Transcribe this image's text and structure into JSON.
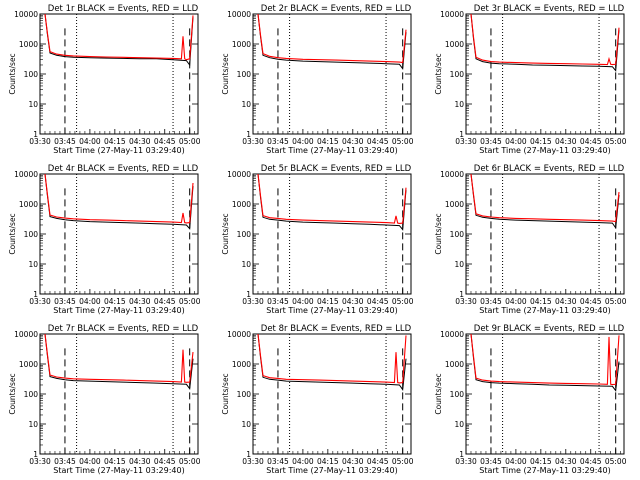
{
  "chart_data": [
    {
      "type": "line",
      "title": "Det 1r BLACK = Events, RED = LLD",
      "xlabel": "Start Time (27-May-11 03:29:40)",
      "ylabel": "Counts/sec",
      "xticks": [
        "03:30",
        "03:45",
        "04:00",
        "04:15",
        "04:30",
        "04:45",
        "05:00"
      ],
      "yticks": [
        "1",
        "10",
        "100",
        "1000",
        "10000"
      ],
      "ylim": [
        1,
        10000
      ],
      "yscale": "log",
      "series": [
        {
          "color": "#000000",
          "x": [
            3.0,
            4.5,
            6,
            10,
            15,
            20,
            30,
            40,
            50,
            60,
            70,
            80,
            88,
            90,
            92
          ],
          "y": [
            10000,
            2000,
            500,
            420,
            380,
            360,
            350,
            340,
            330,
            320,
            320,
            300,
            280,
            200,
            8000
          ]
        },
        {
          "color": "#ff0000",
          "x": [
            3.0,
            4.5,
            6,
            10,
            15,
            20,
            30,
            40,
            50,
            60,
            70,
            80,
            85,
            86,
            87,
            88,
            90,
            92
          ],
          "y": [
            10000,
            2200,
            560,
            460,
            420,
            400,
            380,
            370,
            360,
            350,
            340,
            330,
            320,
            1800,
            320,
            300,
            320,
            9000
          ]
        }
      ]
    },
    {
      "type": "line",
      "title": "Det 2r BLACK = Events, RED = LLD",
      "xlabel": "Start Time (27-May-11 03:29:40)",
      "ylabel": "Counts/sec",
      "xticks": [
        "03:30",
        "03:45",
        "04:00",
        "04:15",
        "04:30",
        "04:45",
        "05:00"
      ],
      "yticks": [
        "1",
        "10",
        "100",
        "1000",
        "10000"
      ],
      "ylim": [
        1,
        10000
      ],
      "yscale": "log",
      "series": [
        {
          "color": "#000000",
          "x": [
            3.0,
            4.5,
            6,
            10,
            15,
            20,
            30,
            40,
            50,
            60,
            70,
            80,
            88,
            90,
            92
          ],
          "y": [
            10000,
            1800,
            420,
            350,
            310,
            290,
            270,
            260,
            250,
            240,
            230,
            220,
            210,
            150,
            2500
          ]
        },
        {
          "color": "#ff0000",
          "x": [
            3.0,
            4.5,
            6,
            10,
            15,
            20,
            30,
            40,
            50,
            60,
            70,
            80,
            88,
            90,
            92
          ],
          "y": [
            10000,
            2000,
            480,
            390,
            350,
            330,
            310,
            300,
            290,
            280,
            270,
            260,
            250,
            240,
            3000
          ]
        }
      ]
    },
    {
      "type": "line",
      "title": "Det 3r BLACK = Events, RED = LLD",
      "xlabel": "Start Time (27-May-11 03:29:40)",
      "ylabel": "Counts/sec",
      "xticks": [
        "03:30",
        "03:45",
        "04:00",
        "04:15",
        "04:30",
        "04:45",
        "05:00"
      ],
      "yticks": [
        "1",
        "10",
        "100",
        "1000",
        "10000"
      ],
      "ylim": [
        1,
        10000
      ],
      "yscale": "log",
      "series": [
        {
          "color": "#000000",
          "x": [
            3.0,
            4.5,
            6,
            10,
            15,
            20,
            30,
            40,
            50,
            60,
            70,
            80,
            88,
            90,
            92
          ],
          "y": [
            10000,
            1500,
            320,
            260,
            230,
            220,
            210,
            200,
            195,
            190,
            185,
            180,
            175,
            130,
            3000
          ]
        },
        {
          "color": "#ff0000",
          "x": [
            3.0,
            4.5,
            6,
            10,
            15,
            20,
            30,
            40,
            50,
            60,
            70,
            80,
            85,
            86,
            87,
            88,
            90,
            92
          ],
          "y": [
            10000,
            1700,
            360,
            290,
            260,
            250,
            240,
            230,
            225,
            220,
            215,
            210,
            205,
            320,
            210,
            205,
            210,
            3500
          ]
        }
      ]
    },
    {
      "type": "line",
      "title": "Det 4r BLACK = Events, RED = LLD",
      "xlabel": "Start Time (27-May-11 03:29:40)",
      "ylabel": "Counts/sec",
      "xticks": [
        "03:30",
        "03:45",
        "04:00",
        "04:15",
        "04:30",
        "04:45",
        "05:00"
      ],
      "yticks": [
        "1",
        "10",
        "100",
        "1000",
        "10000"
      ],
      "ylim": [
        1,
        10000
      ],
      "yscale": "log",
      "series": [
        {
          "color": "#000000",
          "x": [
            3.0,
            4.5,
            6,
            10,
            15,
            20,
            30,
            40,
            50,
            60,
            70,
            80,
            88,
            90,
            92
          ],
          "y": [
            10000,
            1800,
            380,
            330,
            300,
            280,
            260,
            250,
            240,
            230,
            220,
            210,
            200,
            150,
            4000
          ]
        },
        {
          "color": "#ff0000",
          "x": [
            3.0,
            4.5,
            6,
            10,
            15,
            20,
            30,
            40,
            50,
            60,
            70,
            80,
            85,
            86,
            87,
            88,
            90,
            92
          ],
          "y": [
            10000,
            2000,
            430,
            370,
            340,
            320,
            300,
            290,
            280,
            270,
            260,
            250,
            240,
            500,
            240,
            235,
            240,
            5000
          ]
        }
      ]
    },
    {
      "type": "line",
      "title": "Det 5r BLACK = Events, RED = LLD",
      "xlabel": "Start Time (27-May-11 03:29:40)",
      "ylabel": "Counts/sec",
      "xticks": [
        "03:30",
        "03:45",
        "04:00",
        "04:15",
        "04:30",
        "04:45",
        "05:00"
      ],
      "yticks": [
        "1",
        "10",
        "100",
        "1000",
        "10000"
      ],
      "ylim": [
        1,
        10000
      ],
      "yscale": "log",
      "series": [
        {
          "color": "#000000",
          "x": [
            3.0,
            4.5,
            6,
            10,
            15,
            20,
            30,
            40,
            50,
            60,
            70,
            80,
            88,
            90,
            92
          ],
          "y": [
            10000,
            1700,
            360,
            310,
            290,
            270,
            250,
            240,
            230,
            220,
            210,
            200,
            190,
            140,
            3000
          ]
        },
        {
          "color": "#ff0000",
          "x": [
            3.0,
            4.5,
            6,
            10,
            15,
            20,
            30,
            40,
            50,
            60,
            70,
            80,
            85,
            86,
            87,
            88,
            90,
            92
          ],
          "y": [
            10000,
            1900,
            410,
            350,
            330,
            310,
            290,
            280,
            270,
            260,
            250,
            240,
            230,
            400,
            230,
            225,
            230,
            3500
          ]
        }
      ]
    },
    {
      "type": "line",
      "title": "Det 6r BLACK = Events, RED = LLD",
      "xlabel": "Start Time (27-May-11 03:29:40)",
      "ylabel": "Counts/sec",
      "xticks": [
        "03:30",
        "03:45",
        "04:00",
        "04:15",
        "04:30",
        "04:45",
        "05:00"
      ],
      "yticks": [
        "1",
        "10",
        "100",
        "1000",
        "10000"
      ],
      "ylim": [
        1,
        10000
      ],
      "yscale": "log",
      "series": [
        {
          "color": "#000000",
          "x": [
            3.0,
            4.5,
            6,
            10,
            15,
            20,
            30,
            40,
            50,
            60,
            70,
            80,
            88,
            90,
            92
          ],
          "y": [
            10000,
            1900,
            420,
            360,
            330,
            310,
            290,
            280,
            270,
            260,
            250,
            240,
            230,
            160,
            2000
          ]
        },
        {
          "color": "#ff0000",
          "x": [
            3.0,
            4.5,
            6,
            10,
            15,
            20,
            30,
            40,
            50,
            60,
            70,
            80,
            88,
            90,
            92
          ],
          "y": [
            10000,
            2100,
            470,
            400,
            370,
            350,
            330,
            320,
            310,
            300,
            290,
            280,
            270,
            260,
            2500
          ]
        }
      ]
    },
    {
      "type": "line",
      "title": "Det 7r BLACK = Events, RED = LLD",
      "xlabel": "Start Time (27-May-11 03:29:40)",
      "ylabel": "Counts/sec",
      "xticks": [
        "03:30",
        "03:45",
        "04:00",
        "04:15",
        "04:30",
        "04:45",
        "05:00"
      ],
      "yticks": [
        "1",
        "10",
        "100",
        "1000",
        "10000"
      ],
      "ylim": [
        1,
        10000
      ],
      "yscale": "log",
      "series": [
        {
          "color": "#000000",
          "x": [
            3.0,
            4.5,
            6,
            10,
            15,
            20,
            30,
            40,
            50,
            60,
            70,
            80,
            88,
            90,
            92
          ],
          "y": [
            10000,
            1800,
            380,
            330,
            300,
            280,
            270,
            260,
            250,
            240,
            230,
            220,
            210,
            150,
            1500
          ]
        },
        {
          "color": "#ff0000",
          "x": [
            3.0,
            4.5,
            6,
            10,
            15,
            20,
            30,
            40,
            50,
            60,
            70,
            80,
            85,
            86,
            87,
            88,
            90,
            92
          ],
          "y": [
            10000,
            2000,
            430,
            370,
            340,
            320,
            310,
            300,
            290,
            280,
            270,
            260,
            250,
            3000,
            250,
            245,
            250,
            2500
          ]
        }
      ]
    },
    {
      "type": "line",
      "title": "Det 8r BLACK = Events, RED = LLD",
      "xlabel": "Start Time (27-May-11 03:29:40)",
      "ylabel": "Counts/sec",
      "xticks": [
        "03:30",
        "03:45",
        "04:00",
        "04:15",
        "04:30",
        "04:45",
        "05:00"
      ],
      "yticks": [
        "1",
        "10",
        "100",
        "1000",
        "10000"
      ],
      "ylim": [
        1,
        10000
      ],
      "yscale": "log",
      "series": [
        {
          "color": "#000000",
          "x": [
            3.0,
            4.5,
            6,
            10,
            15,
            20,
            30,
            40,
            50,
            60,
            70,
            80,
            88,
            90,
            92
          ],
          "y": [
            10000,
            1700,
            360,
            310,
            290,
            270,
            260,
            250,
            240,
            230,
            220,
            210,
            200,
            140,
            1500
          ]
        },
        {
          "color": "#ff0000",
          "x": [
            3.0,
            4.5,
            6,
            10,
            15,
            20,
            30,
            40,
            50,
            60,
            70,
            80,
            85,
            86,
            87,
            88,
            90,
            92
          ],
          "y": [
            10000,
            1900,
            410,
            350,
            330,
            310,
            300,
            290,
            280,
            270,
            260,
            250,
            240,
            2500,
            240,
            235,
            240,
            9000
          ]
        }
      ]
    },
    {
      "type": "line",
      "title": "Det 9r BLACK = Events, RED = LLD",
      "xlabel": "Start Time (27-May-11 03:29:40)",
      "ylabel": "Counts/sec",
      "xticks": [
        "03:30",
        "03:45",
        "04:00",
        "04:15",
        "04:30",
        "04:45",
        "05:00"
      ],
      "yticks": [
        "1",
        "10",
        "100",
        "1000",
        "10000"
      ],
      "ylim": [
        1,
        10000
      ],
      "yscale": "log",
      "series": [
        {
          "color": "#000000",
          "x": [
            3.0,
            4.5,
            6,
            10,
            15,
            20,
            30,
            40,
            50,
            60,
            70,
            80,
            88,
            90,
            92
          ],
          "y": [
            10000,
            1600,
            300,
            260,
            240,
            230,
            220,
            210,
            200,
            195,
            190,
            185,
            180,
            130,
            1200
          ]
        },
        {
          "color": "#ff0000",
          "x": [
            3.0,
            4.5,
            6,
            10,
            15,
            20,
            30,
            40,
            50,
            60,
            70,
            80,
            85,
            86,
            87,
            88,
            90,
            92
          ],
          "y": [
            10000,
            1800,
            340,
            290,
            270,
            260,
            250,
            240,
            230,
            225,
            220,
            215,
            210,
            8000,
            210,
            205,
            210,
            9000
          ]
        }
      ]
    }
  ],
  "colors": {
    "events": "#000000",
    "lld": "#ff0000",
    "axes": "#000000",
    "background": "#ffffff"
  },
  "x_range_minutes": [
    0,
    95
  ],
  "event_markers": {
    "dashed_minutes": [
      15,
      90
    ],
    "dotted_minutes": [
      22,
      80
    ]
  }
}
